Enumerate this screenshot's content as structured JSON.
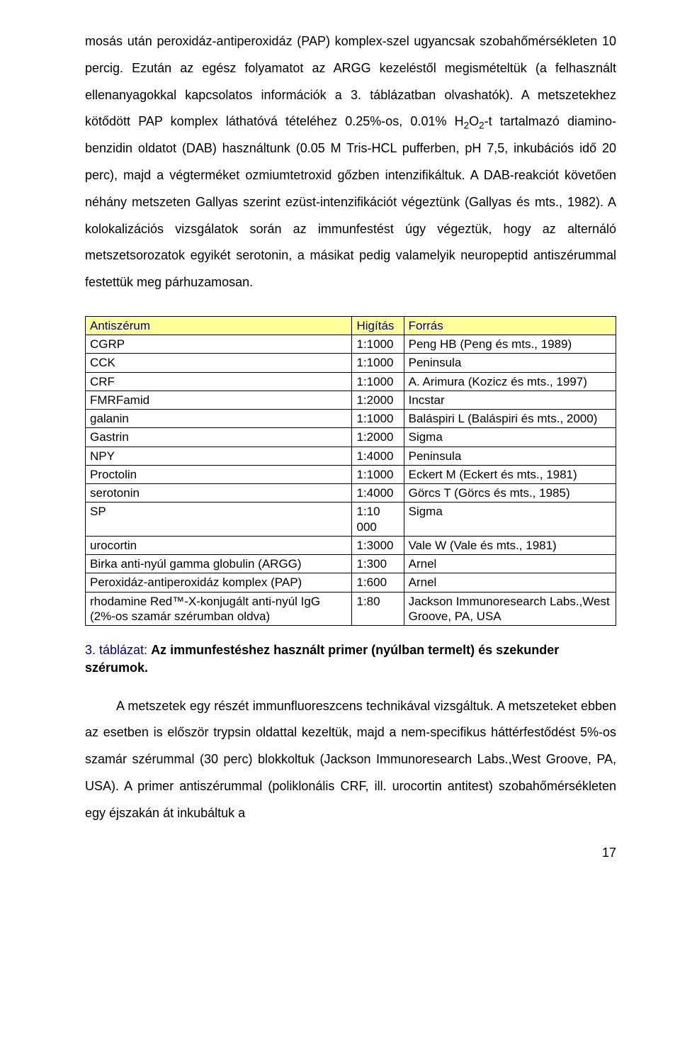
{
  "paragraph1_html": "mosás után peroxidáz-antiperoxidáz (PAP) komplex-szel ugyancsak szobahőmérsékleten 10 percig. Ezután az egész folyamatot az ARGG kezeléstől megismételtük (a felhasznált ellenanyagokkal kapcsolatos információk a 3. táblázatban olvashatók). A metszetekhez kötődött PAP komplex láthatóvá tételéhez 0.25%-os, 0.01% H<sub>2</sub>O<sub>2</sub>-t tartalmazó diamino-benzidin oldatot (DAB) használtunk (0.05 M Tris-HCL pufferben, pH 7,5, inkubációs idő 20 perc), majd a végterméket ozmiumtetroxid gőzben intenzifikáltuk. A DAB-reakciót követően néhány metszeten Gallyas szerint ezüst-intenzifikációt végeztünk (Gallyas és mts., 1982). A kolokalizációs vizsgálatok során az immunfestést úgy végeztük, hogy az alternáló metszetsorozatok egyikét serotonin, a másikat pedig valamelyik neuropeptid antiszérummal festettük meg párhuzamosan.",
  "table": {
    "header_bg": "#ffff99",
    "columns": [
      "Antiszérum",
      "Higítás",
      "Forrás"
    ],
    "rows": [
      [
        "CGRP",
        "1:1000",
        "Peng HB (Peng és mts., 1989)"
      ],
      [
        "CCK",
        "1:1000",
        "Peninsula"
      ],
      [
        "CRF",
        "1:1000",
        "A. Arimura (Kozicz és mts., 1997)"
      ],
      [
        "FMRFamid",
        "1:2000",
        "Incstar"
      ],
      [
        "galanin",
        "1:1000",
        "Baláspiri L (Baláspiri és mts., 2000)"
      ],
      [
        "Gastrin",
        "1:2000",
        "Sigma"
      ],
      [
        "NPY",
        "1:4000",
        "Peninsula"
      ],
      [
        "Proctolin",
        "1:1000",
        "Eckert M (Eckert és mts., 1981)"
      ],
      [
        "serotonin",
        "1:4000",
        "Görcs T (Görcs és mts., 1985)"
      ],
      [
        "SP",
        "1:10 000",
        "Sigma"
      ],
      [
        "urocortin",
        "1:3000",
        "Vale W (Vale és mts., 1981)"
      ],
      [
        "Birka anti-nyúl gamma globulin (ARGG)",
        "1:300",
        "Arnel"
      ],
      [
        "Peroxidáz-antiperoxidáz komplex (PAP)",
        "1:600",
        "Arnel"
      ],
      [
        "rhodamine Red™-X-konjugált anti-nyúl IgG (2%-os szamár szérumban oldva)",
        "1:80",
        "Jackson Immunoresearch Labs.,West Groove, PA, USA"
      ]
    ]
  },
  "caption_lead": "3. táblázat: ",
  "caption_rest": "Az immunfestéshez használt primer (nyúlban termelt) és szekunder szérumok.",
  "paragraph2": "A metszetek egy részét immunfluoreszcens technikával vizsgáltuk. A metszeteket ebben az esetben is először trypsin oldattal kezeltük, majd a nem-specifikus háttérfestődést 5%-os szamár szérummal (30 perc) blokkoltuk (Jackson Immunoresearch Labs.,West Groove, PA, USA). A primer antiszérummal (poliklonális CRF, ill. urocortin antitest) szobahőmérsékleten egy éjszakán át inkubáltuk a",
  "page_number": "17"
}
